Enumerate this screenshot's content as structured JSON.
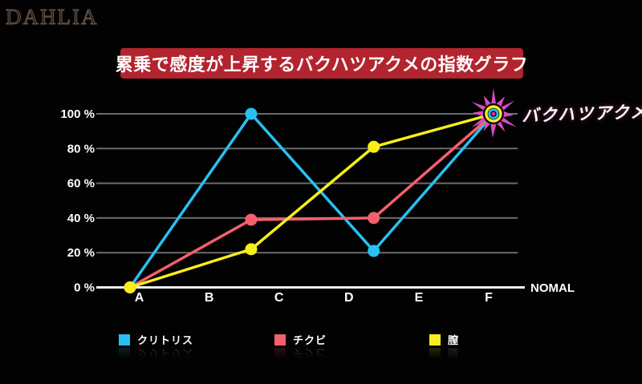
{
  "page": {
    "background": "#020202"
  },
  "logo": {
    "text": "DAHLIA"
  },
  "banner": {
    "text": "累乗で感度が上昇するバクハツアクメの指数グラフ",
    "bg_color": "#b2242e",
    "text_color": "#ffffff"
  },
  "chart_data": {
    "type": "line",
    "title": "累乗で感度が上昇するバクハツアクメの指数グラフ",
    "categories": [
      "A",
      "B",
      "C",
      "D",
      "E",
      "F"
    ],
    "axis_end_label": "NOMAL",
    "y_ticks": [
      {
        "label": "100 %",
        "value": 100
      },
      {
        "label": "80 %",
        "value": 80
      },
      {
        "label": "60 %",
        "value": 60
      },
      {
        "label": "40 %",
        "value": 40
      },
      {
        "label": "20 %",
        "value": 20
      },
      {
        "label": "0 %",
        "value": 0
      }
    ],
    "ylim": [
      0,
      100
    ],
    "grid": true,
    "grid_color": "#6b6b6b",
    "baseline_color": "#eeeeee",
    "legend_position": "bottom",
    "series": [
      {
        "name": "クリトリス",
        "color": "#29c0f2",
        "points": [
          {
            "x": 0,
            "y": 0
          },
          {
            "x": 1.7,
            "y": 100
          },
          {
            "x": 3.42,
            "y": 21
          },
          {
            "x": 5.1,
            "y": 100
          }
        ]
      },
      {
        "name": "チクビ",
        "color": "#f45f6e",
        "points": [
          {
            "x": 0,
            "y": 0
          },
          {
            "x": 1.7,
            "y": 39
          },
          {
            "x": 3.42,
            "y": 40
          },
          {
            "x": 5.1,
            "y": 100
          }
        ]
      },
      {
        "name": "膣",
        "color": "#f7ee1c",
        "points": [
          {
            "x": 0,
            "y": 0
          },
          {
            "x": 1.7,
            "y": 22
          },
          {
            "x": 3.42,
            "y": 81
          },
          {
            "x": 5.1,
            "y": 100
          }
        ]
      }
    ],
    "annotation": {
      "label": "バクハツアクメ",
      "x": 5.1,
      "y": 100,
      "marker": "starburst",
      "marker_color": "#d44cbe",
      "marker_ring_colors": [
        "#f7ee1c",
        "#29c0f2",
        "#ef2f96"
      ]
    }
  }
}
